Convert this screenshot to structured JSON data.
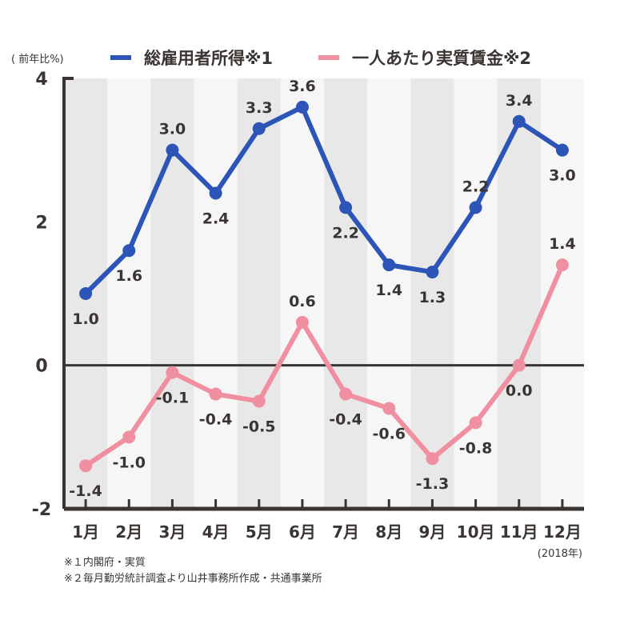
{
  "chart_data": {
    "type": "line",
    "ylabel": "( 前年比%)",
    "ylim": [
      -2,
      4
    ],
    "yticks": [
      "4",
      "2",
      "0",
      "-2"
    ],
    "categories": [
      "1月",
      "2月",
      "3月",
      "4月",
      "5月",
      "6月",
      "7月",
      "8月",
      "9月",
      "10月",
      "11月",
      "12月"
    ],
    "x_note": "(2018年)",
    "grid": "alternating column bands",
    "legend": "top",
    "series": [
      {
        "name": "総雇用者所得※1",
        "color": "#2d55b8",
        "values": [
          1.0,
          1.6,
          3.0,
          2.4,
          3.3,
          3.6,
          2.2,
          1.4,
          1.3,
          2.2,
          3.4,
          3.0
        ],
        "labels": [
          "1.0",
          "1.6",
          "3.0",
          "2.4",
          "3.3",
          "3.6",
          "2.2",
          "1.4",
          "1.3",
          "2.2",
          "3.4",
          "3.0"
        ]
      },
      {
        "name": "一人あたり実質賃金※2",
        "color": "#f08fa0",
        "values": [
          -1.4,
          -1.0,
          -0.1,
          -0.4,
          -0.5,
          0.6,
          -0.4,
          -0.6,
          -1.3,
          -0.8,
          0.0,
          1.4
        ],
        "labels": [
          "-1.4",
          "-1.0",
          "-0.1",
          "-0.4",
          "-0.5",
          "0.6",
          "-0.4",
          "-0.6",
          "-1.3",
          "-0.8",
          "0.0",
          "1.4"
        ]
      }
    ]
  },
  "notes": [
    "※１内閣府・実質",
    "※２毎月勤労統計調査より山井事務所作成・共通事業所"
  ]
}
